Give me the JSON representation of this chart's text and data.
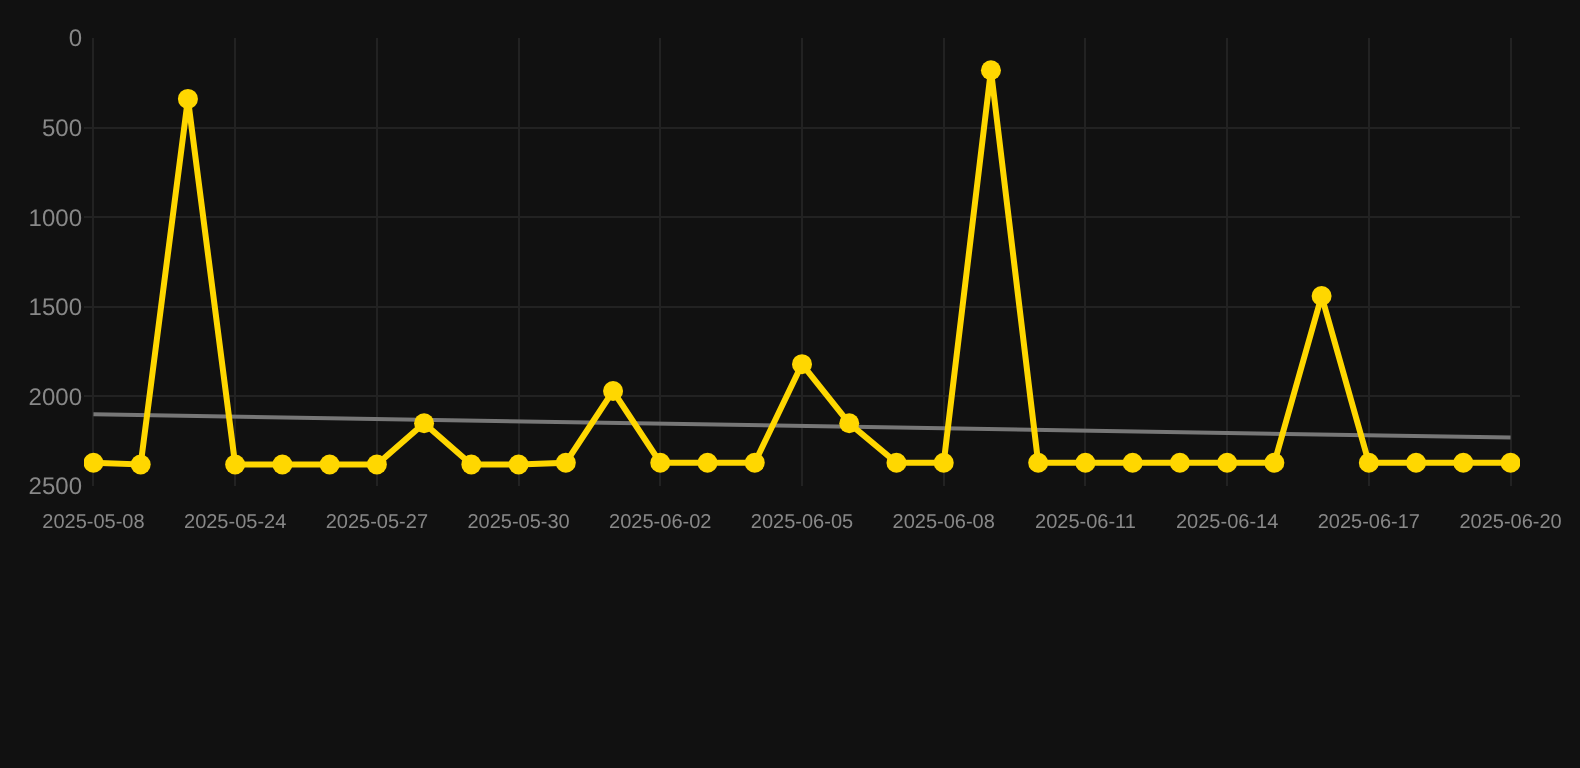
{
  "chart_data": {
    "type": "line",
    "categories": [
      "2025-05-08",
      null,
      null,
      "2025-05-24",
      null,
      null,
      "2025-05-27",
      null,
      null,
      "2025-05-30",
      null,
      null,
      "2025-06-02",
      null,
      null,
      "2025-06-05",
      null,
      null,
      "2025-06-08",
      null,
      null,
      "2025-06-11",
      null,
      null,
      "2025-06-14",
      null,
      null,
      "2025-06-17",
      null,
      null,
      "2025-06-20"
    ],
    "series": [
      {
        "color": "#ffd700",
        "marker": "circle",
        "values": [
          2370,
          2380,
          340,
          2380,
          2380,
          2380,
          2380,
          2150,
          2380,
          2380,
          2370,
          1970,
          2370,
          2370,
          2370,
          1820,
          2150,
          2370,
          2370,
          180,
          2370,
          2370,
          2370,
          2370,
          2370,
          2370,
          1440,
          2370,
          2370,
          2370,
          2370
        ]
      },
      {
        "color": "#777777",
        "marker": "none",
        "values": [
          2100,
          null,
          null,
          null,
          null,
          null,
          null,
          null,
          null,
          null,
          null,
          null,
          null,
          null,
          null,
          null,
          null,
          null,
          null,
          null,
          null,
          null,
          null,
          null,
          null,
          null,
          null,
          null,
          null,
          null,
          2230
        ]
      }
    ],
    "ylim": [
      2500,
      0
    ],
    "yticks": [
      0,
      500,
      1000,
      1500,
      2000,
      2500
    ],
    "grid": true
  }
}
